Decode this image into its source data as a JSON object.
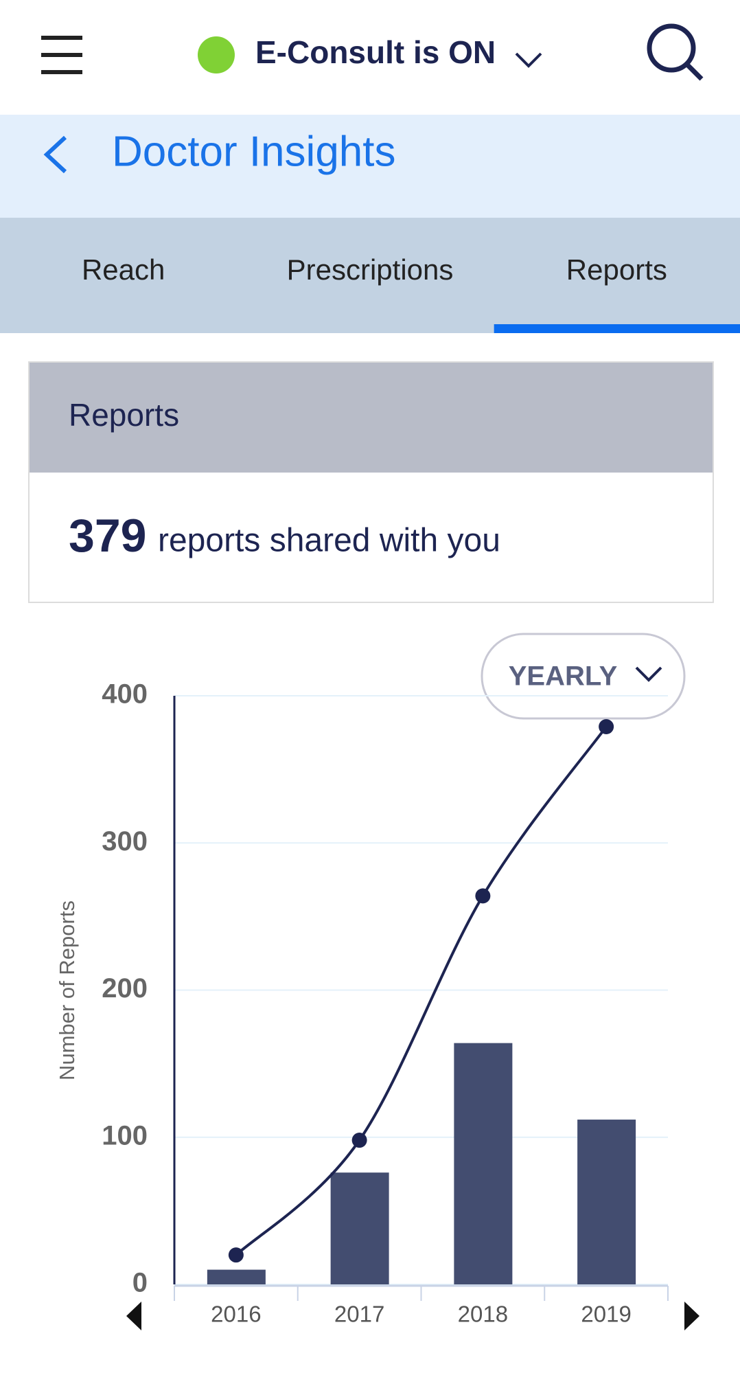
{
  "header": {
    "status": "E-Consult is ON"
  },
  "page_title": "Doctor Insights",
  "tabs": [
    "Reach",
    "Prescriptions",
    "Reports"
  ],
  "active_tab": 2,
  "card": {
    "title": "Reports",
    "total": 379,
    "text": "reports shared with you"
  },
  "chart_data": {
    "type": "combo",
    "y_label": "Number of Reports",
    "period": "YEARLY",
    "categories": [
      "2016",
      "2017",
      "2018",
      "2019"
    ],
    "series": [
      {
        "type": "bar",
        "color": "#434d70",
        "values": [
          10,
          76,
          164,
          112
        ]
      },
      {
        "type": "line",
        "color": "#1d2451",
        "values": [
          20,
          98,
          264,
          379
        ]
      }
    ],
    "ylim": [
      0,
      400
    ],
    "yticks": [
      0,
      100,
      200,
      300,
      400
    ],
    "grid": true
  }
}
